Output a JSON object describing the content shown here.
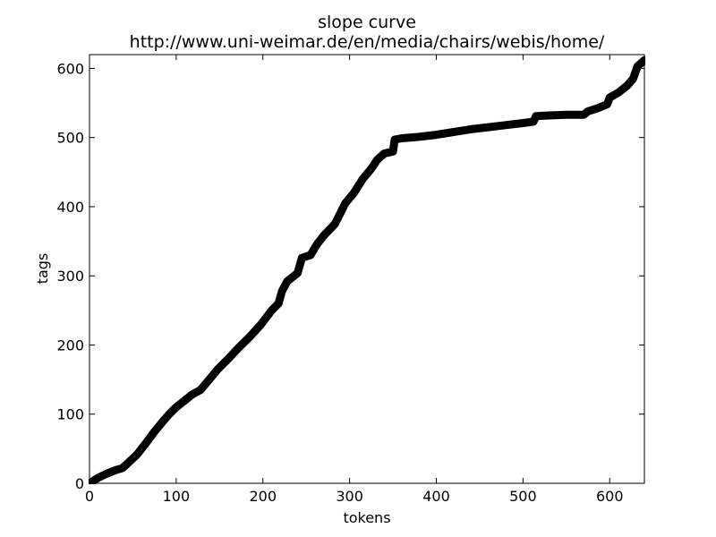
{
  "chart_data": {
    "type": "line",
    "title": "slope curve",
    "subtitle": "http://www.uni-weimar.de/en/media/chairs/webis/home/",
    "xlabel": "tokens",
    "ylabel": "tags",
    "xlim": [
      0,
      640
    ],
    "ylim": [
      0,
      620
    ],
    "x_ticks": [
      0,
      100,
      200,
      300,
      400,
      500,
      600
    ],
    "y_ticks": [
      0,
      100,
      200,
      300,
      400,
      500,
      600
    ],
    "grid": false,
    "line_color": "#000000",
    "series": [
      {
        "x": [
          0,
          10,
          20,
          30,
          38,
          45,
          55,
          65,
          75,
          85,
          92,
          100,
          110,
          118,
          128,
          138,
          148,
          160,
          172,
          185,
          198,
          210,
          218,
          222,
          228,
          240,
          245,
          255,
          262,
          270,
          283,
          295,
          305,
          315,
          325,
          332,
          340,
          350,
          352,
          360,
          380,
          400,
          420,
          440,
          460,
          480,
          500,
          512,
          515,
          530,
          550,
          570,
          575,
          585,
          597,
          600,
          610,
          620,
          627,
          632,
          640
        ],
        "y": [
          0,
          8,
          14,
          19,
          22,
          30,
          42,
          58,
          75,
          90,
          100,
          110,
          120,
          128,
          135,
          150,
          165,
          180,
          196,
          212,
          230,
          250,
          260,
          278,
          292,
          304,
          326,
          330,
          345,
          358,
          375,
          405,
          420,
          440,
          455,
          468,
          477,
          480,
          497,
          499,
          501,
          504,
          508,
          512,
          515,
          518,
          521,
          523,
          531,
          532,
          533,
          533,
          538,
          542,
          548,
          558,
          565,
          575,
          585,
          603,
          612
        ]
      }
    ]
  }
}
